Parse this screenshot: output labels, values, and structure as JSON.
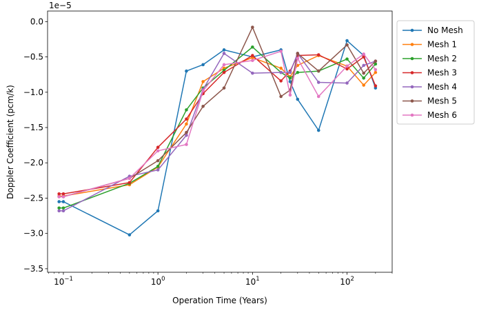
{
  "chart_data": {
    "type": "line",
    "xlabel": "Operation Time (Years)",
    "ylabel": "Doppler Coefficient (pcm/k)",
    "x_scale": "log",
    "xlim": [
      0.068,
      300
    ],
    "ylim": [
      -3.55e-05,
      1.5e-06
    ],
    "y_offset_label": "1e−5",
    "x_ticks": [
      {
        "value": 0.1,
        "base": "10",
        "exp": "−1"
      },
      {
        "value": 1,
        "base": "10",
        "exp": "0"
      },
      {
        "value": 10,
        "base": "10",
        "exp": "1"
      },
      {
        "value": 100,
        "base": "10",
        "exp": "2"
      }
    ],
    "y_ticks": [
      {
        "value": 0.0,
        "label": "0.0"
      },
      {
        "value": -5e-06,
        "label": "−0.5"
      },
      {
        "value": -1e-05,
        "label": "−1.0"
      },
      {
        "value": -1.5e-05,
        "label": "−1.5"
      },
      {
        "value": -2e-05,
        "label": "−2.0"
      },
      {
        "value": -2.5e-05,
        "label": "−2.5"
      },
      {
        "value": -3e-05,
        "label": "−3.0"
      },
      {
        "value": -3.5e-05,
        "label": "−3.5"
      }
    ],
    "legend_position": "outside-top-right",
    "x": [
      0.09,
      0.1,
      0.5,
      1,
      2,
      3,
      5,
      10,
      20,
      25,
      30,
      50,
      100,
      150,
      200
    ],
    "series": [
      {
        "name": "No Mesh",
        "color": "#1f77b4",
        "values": [
          -2.55e-05,
          -2.55e-05,
          -3.02e-05,
          -2.68e-05,
          -7e-06,
          -6.1e-06,
          -4e-06,
          -5e-06,
          -4e-06,
          -8.5e-06,
          -1.1e-05,
          -1.54e-05,
          -2.7e-06,
          -4.8e-06,
          -9.4e-06
        ]
      },
      {
        "name": "Mesh 1",
        "color": "#ff7f0e",
        "values": [
          -2.47e-05,
          -2.47e-05,
          -2.31e-05,
          -2.06e-05,
          -1.45e-05,
          -8.5e-06,
          -6.6e-06,
          -5.1e-06,
          -6.6e-06,
          -7.8e-06,
          -6.2e-06,
          -4.8e-06,
          -6.3e-06,
          -9e-06,
          -7.2e-06
        ]
      },
      {
        "name": "Mesh 2",
        "color": "#2ca02c",
        "values": [
          -2.64e-05,
          -2.64e-05,
          -2.29e-05,
          -2.05e-05,
          -1.25e-05,
          -9.4e-06,
          -6.9e-06,
          -3.6e-06,
          -7.2e-06,
          -8e-06,
          -7.2e-06,
          -7e-06,
          -5.3e-06,
          -8e-06,
          -6e-06
        ]
      },
      {
        "name": "Mesh 3",
        "color": "#d62728",
        "values": [
          -2.44e-05,
          -2.44e-05,
          -2.28e-05,
          -1.78e-05,
          -1.38e-05,
          -1.02e-05,
          -7.2e-06,
          -4.8e-06,
          -8.4e-06,
          -7e-06,
          -4.8e-06,
          -4.7e-06,
          -6.7e-06,
          -5e-06,
          -9.1e-06
        ]
      },
      {
        "name": "Mesh 4",
        "color": "#9467bd",
        "values": [
          -2.68e-05,
          -2.68e-05,
          -2.19e-05,
          -2.1e-05,
          -1.61e-05,
          -9.6e-06,
          -4.5e-06,
          -7.3e-06,
          -7.2e-06,
          -7.2e-06,
          -4.5e-06,
          -8.6e-06,
          -8.7e-06,
          -6.2e-06,
          -5.6e-06
        ]
      },
      {
        "name": "Mesh 5",
        "color": "#8c564b",
        "values": [
          -2.48e-05,
          -2.48e-05,
          -2.22e-05,
          -1.97e-05,
          -1.57e-05,
          -1.2e-05,
          -9.4e-06,
          -8e-07,
          -1.06e-05,
          -9.7e-06,
          -4.5e-06,
          -7e-06,
          -3.3e-06,
          -7.3e-06,
          -5.6e-06
        ]
      },
      {
        "name": "Mesh 6",
        "color": "#e377c2",
        "values": [
          -2.48e-05,
          -2.48e-05,
          -2.22e-05,
          -1.83e-05,
          -1.74e-05,
          -9.8e-06,
          -6.1e-06,
          -5.5e-06,
          -4.2e-06,
          -1.04e-05,
          -5.2e-06,
          -1.06e-05,
          -6.3e-06,
          -4.6e-06,
          -6.8e-06
        ]
      }
    ]
  }
}
